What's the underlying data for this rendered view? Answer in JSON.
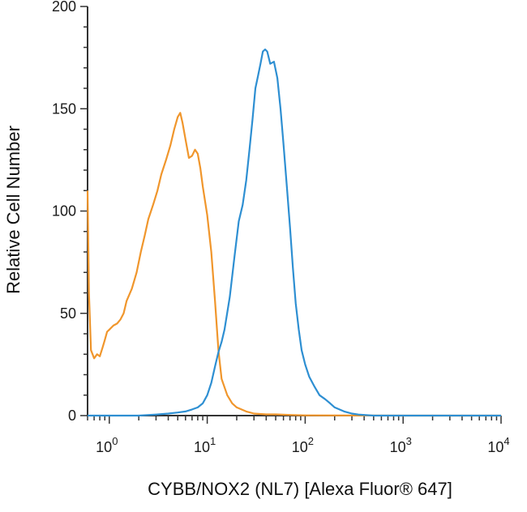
{
  "chart_data": {
    "type": "line",
    "title": "",
    "xlabel": "CYBB/NOX2 (NL7) [Alexa Fluor® 647]",
    "ylabel": "Relative Cell Number",
    "x_scale": "log",
    "xlim": [
      0.6,
      10000
    ],
    "ylim": [
      0,
      200
    ],
    "x_ticks": [
      {
        "base": "10",
        "exp": "0",
        "value": 1
      },
      {
        "base": "10",
        "exp": "1",
        "value": 10
      },
      {
        "base": "10",
        "exp": "2",
        "value": 100
      },
      {
        "base": "10",
        "exp": "3",
        "value": 1000
      },
      {
        "base": "10",
        "exp": "4",
        "value": 10000
      }
    ],
    "y_ticks": [
      {
        "label": "0",
        "value": 0
      },
      {
        "label": "50",
        "value": 50
      },
      {
        "label": "100",
        "value": 100
      },
      {
        "label": "150",
        "value": 150
      },
      {
        "label": "200",
        "value": 200
      }
    ],
    "grid": false,
    "legend": "none",
    "series": [
      {
        "color": "#f0962c",
        "points": [
          [
            0.6,
            110
          ],
          [
            0.62,
            60
          ],
          [
            0.65,
            32
          ],
          [
            0.7,
            28
          ],
          [
            0.75,
            30
          ],
          [
            0.8,
            29
          ],
          [
            0.85,
            33
          ],
          [
            0.9,
            37
          ],
          [
            0.95,
            41
          ],
          [
            1.0,
            42
          ],
          [
            1.1,
            44
          ],
          [
            1.2,
            45
          ],
          [
            1.3,
            47
          ],
          [
            1.4,
            50
          ],
          [
            1.5,
            56
          ],
          [
            1.7,
            62
          ],
          [
            1.9,
            70
          ],
          [
            2.1,
            80
          ],
          [
            2.3,
            88
          ],
          [
            2.5,
            96
          ],
          [
            2.8,
            103
          ],
          [
            3.1,
            110
          ],
          [
            3.4,
            118
          ],
          [
            3.8,
            125
          ],
          [
            4.2,
            132
          ],
          [
            4.6,
            140
          ],
          [
            5.0,
            146
          ],
          [
            5.3,
            148
          ],
          [
            5.6,
            143
          ],
          [
            6.0,
            135
          ],
          [
            6.5,
            126
          ],
          [
            7.0,
            127
          ],
          [
            7.5,
            130
          ],
          [
            8.0,
            128
          ],
          [
            8.5,
            121
          ],
          [
            9.0,
            112
          ],
          [
            10,
            98
          ],
          [
            11,
            80
          ],
          [
            12,
            56
          ],
          [
            13,
            32
          ],
          [
            14,
            18
          ],
          [
            16,
            10
          ],
          [
            18,
            6
          ],
          [
            20,
            4
          ],
          [
            25,
            2
          ],
          [
            30,
            1
          ],
          [
            40,
            0.6
          ],
          [
            50,
            0.6
          ],
          [
            70,
            0.3
          ],
          [
            100,
            0.1
          ],
          [
            1000,
            0
          ],
          [
            10000,
            0
          ]
        ]
      },
      {
        "color": "#2e8fd2",
        "points": [
          [
            0.6,
            0
          ],
          [
            2,
            0
          ],
          [
            3,
            0.5
          ],
          [
            4,
            1
          ],
          [
            5,
            1.5
          ],
          [
            6,
            2
          ],
          [
            7,
            3
          ],
          [
            8,
            4
          ],
          [
            9,
            6
          ],
          [
            10,
            10
          ],
          [
            11,
            16
          ],
          [
            12,
            24
          ],
          [
            13,
            31
          ],
          [
            14,
            36
          ],
          [
            15,
            42
          ],
          [
            17,
            58
          ],
          [
            19,
            78
          ],
          [
            21,
            95
          ],
          [
            23,
            103
          ],
          [
            25,
            115
          ],
          [
            27,
            130
          ],
          [
            29,
            145
          ],
          [
            31,
            160
          ],
          [
            33,
            166
          ],
          [
            35,
            172
          ],
          [
            37,
            178
          ],
          [
            39,
            179
          ],
          [
            41,
            178
          ],
          [
            44,
            172
          ],
          [
            48,
            173
          ],
          [
            52,
            165
          ],
          [
            56,
            150
          ],
          [
            60,
            133
          ],
          [
            65,
            112
          ],
          [
            70,
            92
          ],
          [
            75,
            72
          ],
          [
            80,
            55
          ],
          [
            86,
            42
          ],
          [
            92,
            32
          ],
          [
            100,
            25
          ],
          [
            110,
            19
          ],
          [
            125,
            14
          ],
          [
            140,
            10
          ],
          [
            160,
            8
          ],
          [
            180,
            6
          ],
          [
            200,
            4
          ],
          [
            250,
            2
          ],
          [
            300,
            1
          ],
          [
            350,
            0.5
          ],
          [
            500,
            0
          ],
          [
            10000,
            0
          ]
        ]
      }
    ]
  }
}
